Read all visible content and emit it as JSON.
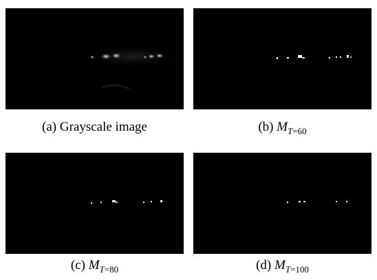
{
  "figure": {
    "panels": [
      {
        "tag": "(a)",
        "caption": "Grayscale image",
        "image_alt": "Dark night-time grayscale road scene with faint glowing headlights near the horizon"
      },
      {
        "tag": "(b)",
        "symbol": "M",
        "subscript_var": "T",
        "subscript_rest": "=60",
        "image_alt": "Thresholded binary map M_T=60: small white blobs on black"
      },
      {
        "tag": "(c)",
        "symbol": "M",
        "subscript_var": "T",
        "subscript_rest": "=80",
        "image_alt": "Thresholded binary map M_T=80: fewer white blobs on black"
      },
      {
        "tag": "(d)",
        "symbol": "M",
        "subscript_var": "T",
        "subscript_rest": "=100",
        "image_alt": "Thresholded binary map M_T=100: very few small white dots on black"
      }
    ]
  }
}
